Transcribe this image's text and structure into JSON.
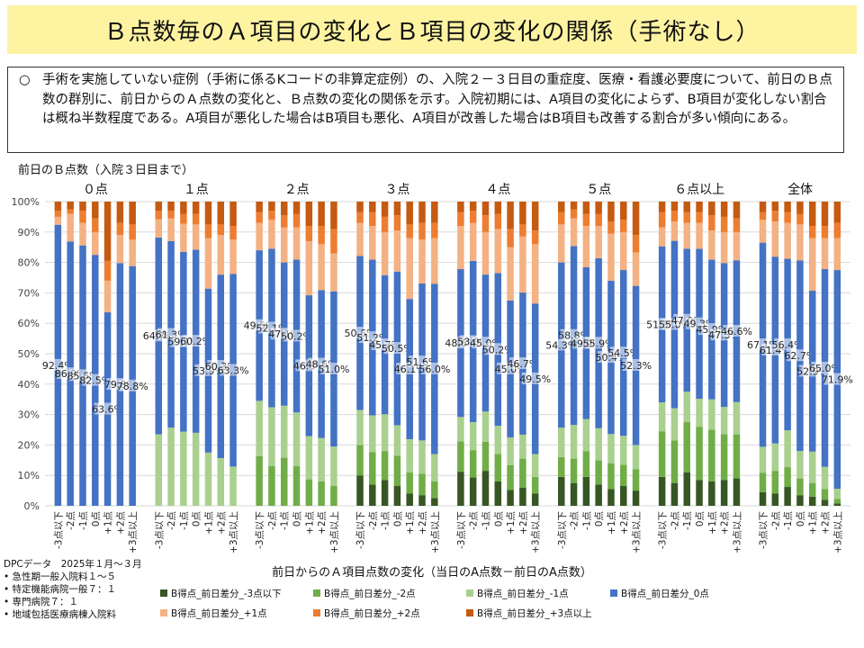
{
  "title": "Ｂ点数毎のＡ項目の変化とＢ項目の変化の関係（手術なし）",
  "summary": {
    "bullet": "○",
    "text": "手術を実施していない症例（手術に係るKコードの非算定症例）の、入院２－３日目の重症度、医療・看護必要度について、前日のＢ点数の群別に、前日からのＡ点数の変化と、Ｂ点数の変化の関係を示す。入院初期には、A項目の変化によらず、B項目が変化しない割合は概ね半数程度である。A項目が悪化した場合はB項目も悪化、A項目が改善した場合はB項目も改善する割合が多い傾向にある。"
  },
  "chart_subtitle": "前日のＢ点数（入院３日目まで）",
  "footer": {
    "source": "DPCデータ　2025年１月～３月",
    "items": [
      "急性期一般入院料１～５",
      "特定機能病院一般７：１",
      "専門病院７：１",
      "地域包括医療病棟入院料"
    ]
  },
  "chart_data": {
    "type": "bar",
    "stacked": true,
    "normalized": true,
    "xlabel": "前日からのＡ項目点数の変化（当日のA点数－前日のA点数）",
    "ylim": [
      0,
      100
    ],
    "yticks": [
      "0%",
      "10%",
      "20%",
      "30%",
      "40%",
      "50%",
      "60%",
      "70%",
      "80%",
      "90%",
      "100%"
    ],
    "grid": true,
    "legend_position": "bottom",
    "categories": [
      "-3点以下",
      "-2点",
      "-1点",
      "0点",
      "+1点",
      "+2点",
      "+3点以上"
    ],
    "series_names": [
      "B得点_前日差分_-3点以下",
      "B得点_前日差分_-2点",
      "B得点_前日差分_-1点",
      "B得点_前日差分_0点",
      "B得点_前日差分_+1点",
      "B得点_前日差分_+2点",
      "B得点_前日差分_+3点以上"
    ],
    "colors": [
      "#375623",
      "#70ad47",
      "#a9d08e",
      "#4472c4",
      "#f4b183",
      "#ed7d31",
      "#c55a11"
    ],
    "groups": [
      {
        "name": "０点",
        "values": [
          [
            0,
            0,
            0,
            92.4,
            2.6,
            2.0,
            3.0
          ],
          [
            0,
            0,
            0,
            86.9,
            9.1,
            1.5,
            2.5
          ],
          [
            0,
            0,
            0,
            85.6,
            7.4,
            4.0,
            3.0
          ],
          [
            0,
            0,
            0,
            82.5,
            7.5,
            4.5,
            5.5
          ],
          [
            0,
            0,
            0,
            63.6,
            10.4,
            6.5,
            19.5
          ],
          [
            0,
            0,
            0,
            79.8,
            9.2,
            4.0,
            7.0
          ],
          [
            0,
            0,
            0,
            78.8,
            8.7,
            5.0,
            7.5
          ]
        ]
      },
      {
        "name": "１点",
        "values": [
          [
            0,
            0,
            23.5,
            64.7,
            6.0,
            2.8,
            3.0
          ],
          [
            0,
            0,
            25.7,
            61.3,
            7.5,
            2.5,
            3.0
          ],
          [
            0,
            0,
            24.4,
            59.1,
            9.2,
            3.3,
            4.0
          ],
          [
            0,
            0,
            24.0,
            60.2,
            8.3,
            3.5,
            4.0
          ],
          [
            0,
            0,
            17.5,
            53.9,
            16.6,
            4.5,
            7.5
          ],
          [
            0,
            0,
            15.7,
            60.3,
            13.0,
            3.5,
            7.5
          ],
          [
            0,
            0,
            12.9,
            63.3,
            11.3,
            4.5,
            8.0
          ]
        ]
      },
      {
        "name": "２点",
        "values": [
          [
            0,
            16.3,
            18.2,
            49.5,
            9.0,
            3.5,
            3.5
          ],
          [
            0,
            13.0,
            19.4,
            52.1,
            9.5,
            3.0,
            3.0
          ],
          [
            0,
            15.8,
            17.1,
            47.1,
            11.5,
            4.0,
            4.5
          ],
          [
            0,
            13.0,
            17.7,
            50.2,
            10.6,
            4.5,
            4.0
          ],
          [
            0,
            8.7,
            14.2,
            46.3,
            17.8,
            5.0,
            8.0
          ],
          [
            0,
            8.0,
            14.3,
            48.6,
            15.1,
            6.0,
            8.0
          ],
          [
            0,
            6.5,
            13.0,
            51.0,
            12.5,
            8.0,
            9.0
          ]
        ]
      },
      {
        "name": "３点",
        "values": [
          [
            10.0,
            10.0,
            11.5,
            50.6,
            10.9,
            3.5,
            3.5
          ],
          [
            7.0,
            10.6,
            12.1,
            51.2,
            11.1,
            4.5,
            3.5
          ],
          [
            8.5,
            9.5,
            12.1,
            45.7,
            14.2,
            5.0,
            5.0
          ],
          [
            6.5,
            10.0,
            10.0,
            50.5,
            13.5,
            5.0,
            4.5
          ],
          [
            4.0,
            7.0,
            10.9,
            46.1,
            20.0,
            4.5,
            7.5
          ],
          [
            3.5,
            7.0,
            11.0,
            51.6,
            14.4,
            5.5,
            7.0
          ],
          [
            2.5,
            5.5,
            9.0,
            56.0,
            15.0,
            5.0,
            7.0
          ]
        ]
      },
      {
        "name": "４点",
        "values": [
          [
            11.2,
            10.0,
            8.0,
            48.6,
            14.2,
            4.5,
            3.5
          ],
          [
            9.3,
            9.0,
            9.2,
            53.0,
            12.5,
            4.0,
            3.0
          ],
          [
            11.5,
            9.5,
            10.0,
            45.0,
            14.0,
            5.5,
            4.5
          ],
          [
            8.0,
            9.0,
            9.3,
            50.2,
            14.5,
            5.0,
            4.0
          ],
          [
            5.2,
            8.2,
            9.1,
            45.0,
            17.5,
            6.0,
            9.0
          ],
          [
            6.0,
            9.5,
            7.9,
            46.7,
            18.4,
            4.0,
            7.5
          ],
          [
            4.0,
            5.5,
            7.5,
            49.5,
            19.5,
            4.5,
            9.5
          ]
        ]
      },
      {
        "name": "５点",
        "values": [
          [
            9.5,
            6.5,
            9.7,
            54.3,
            12.5,
            4.0,
            3.5
          ],
          [
            7.5,
            8.0,
            11.1,
            58.8,
            9.1,
            3.0,
            2.5
          ],
          [
            9.5,
            8.5,
            10.5,
            49.9,
            13.6,
            4.0,
            4.0
          ],
          [
            7.0,
            8.0,
            10.5,
            55.9,
            10.6,
            4.0,
            4.0
          ],
          [
            5.5,
            8.5,
            9.6,
            50.4,
            15.5,
            4.0,
            6.5
          ],
          [
            6.5,
            7.0,
            9.5,
            54.5,
            12.5,
            4.0,
            6.0
          ],
          [
            5.0,
            7.0,
            8.0,
            52.3,
            11.0,
            5.7,
            11.0
          ]
        ]
      },
      {
        "name": "６点以上",
        "values": [
          [
            9.5,
            15.0,
            9.5,
            51.3,
            6.2,
            5.0,
            3.5
          ],
          [
            7.5,
            14.0,
            10.6,
            55.0,
            6.4,
            3.5,
            3.0
          ],
          [
            11.0,
            16.5,
            10.0,
            47.0,
            8.5,
            3.5,
            3.5
          ],
          [
            8.5,
            17.5,
            9.2,
            49.3,
            8.5,
            3.5,
            3.5
          ],
          [
            8.0,
            17.0,
            10.0,
            45.9,
            9.6,
            5.0,
            4.5
          ],
          [
            8.5,
            15.0,
            9.0,
            47.3,
            10.2,
            5.0,
            5.0
          ],
          [
            9.0,
            14.5,
            10.6,
            46.6,
            9.3,
            4.5,
            5.5
          ]
        ]
      },
      {
        "name": "全体",
        "values": [
          [
            4.5,
            6.3,
            8.6,
            67.1,
            7.5,
            2.5,
            3.5
          ],
          [
            4.0,
            7.5,
            9.0,
            61.4,
            11.6,
            3.5,
            3.0
          ],
          [
            6.2,
            6.5,
            12.1,
            56.4,
            11.8,
            3.5,
            3.5
          ],
          [
            3.5,
            5.5,
            9.0,
            62.7,
            11.8,
            3.5,
            4.0
          ],
          [
            3.0,
            4.5,
            10.3,
            52.9,
            17.3,
            4.0,
            8.0
          ],
          [
            2.0,
            3.5,
            7.3,
            65.0,
            10.2,
            4.0,
            8.0
          ],
          [
            0.8,
            1.5,
            3.3,
            71.9,
            10.5,
            5.0,
            7.0
          ]
        ]
      }
    ]
  }
}
